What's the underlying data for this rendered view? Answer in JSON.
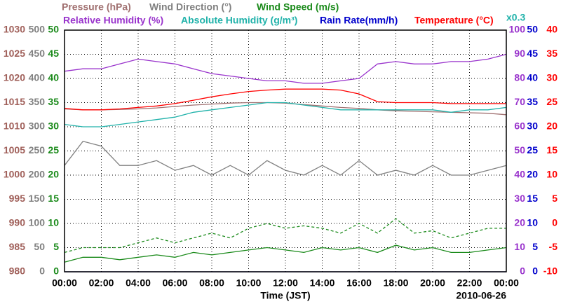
{
  "chart_data": {
    "type": "line",
    "x": [
      0,
      1,
      2,
      3,
      4,
      5,
      6,
      7,
      8,
      9,
      10,
      11,
      12,
      13,
      14,
      15,
      16,
      17,
      18,
      19,
      20,
      21,
      22,
      23,
      24
    ],
    "xlim": [
      0,
      24
    ],
    "xticks": [
      {
        "value": 0,
        "label": "00:00"
      },
      {
        "value": 2,
        "label": "02:00"
      },
      {
        "value": 4,
        "label": "04:00"
      },
      {
        "value": 6,
        "label": "06:00"
      },
      {
        "value": 8,
        "label": "08:00"
      },
      {
        "value": 10,
        "label": "10:00"
      },
      {
        "value": 12,
        "label": "12:00"
      },
      {
        "value": 14,
        "label": "14:00"
      },
      {
        "value": 16,
        "label": "16:00"
      },
      {
        "value": 18,
        "label": "18:00"
      },
      {
        "value": 20,
        "label": "20:00"
      },
      {
        "value": 22,
        "label": "22:00"
      },
      {
        "value": 24,
        "label": "00:00"
      }
    ],
    "x_label": "Time (JST)",
    "date_label": "2010-06-26",
    "scale_note": "x0.3",
    "grid": true,
    "y_axes": [
      {
        "side": "left",
        "color": "#a0605a",
        "ylim": [
          980,
          1030
        ],
        "yticks": [
          980,
          985,
          990,
          995,
          1000,
          1005,
          1010,
          1015,
          1020,
          1025,
          1030
        ]
      },
      {
        "side": "left",
        "color": "#808080",
        "ylim": [
          0,
          500
        ],
        "yticks": [
          0,
          50,
          100,
          150,
          200,
          250,
          300,
          350,
          400,
          450,
          500
        ]
      },
      {
        "side": "left",
        "color": "#1a8a1a",
        "ylim": [
          0,
          50
        ],
        "yticks": [
          0,
          5,
          10,
          15,
          20,
          25,
          30,
          35,
          40,
          45,
          50
        ]
      },
      {
        "side": "right",
        "color": "#9933cc",
        "ylim": [
          0,
          100
        ],
        "yticks": [
          0,
          10,
          20,
          30,
          40,
          50,
          60,
          70,
          80,
          90,
          100
        ]
      },
      {
        "side": "right",
        "color": "#0000cc",
        "ylim": [
          0,
          50
        ],
        "yticks": [
          0,
          5,
          10,
          15,
          20,
          25,
          30,
          35,
          40,
          45,
          50
        ]
      },
      {
        "side": "right",
        "color": "#ff0000",
        "ylim": [
          -10,
          40
        ],
        "yticks": [
          -10,
          -5,
          0,
          5,
          10,
          15,
          20,
          25,
          30,
          35,
          40
        ]
      }
    ],
    "series": [
      {
        "name": "Pressure (hPa)",
        "color": "#a07070",
        "axis": 0,
        "values": [
          1013.7,
          1013.5,
          1013.5,
          1013.6,
          1013.7,
          1013.9,
          1014.2,
          1014.5,
          1014.7,
          1014.9,
          1015.0,
          1015.0,
          1014.9,
          1014.6,
          1014.3,
          1014.0,
          1013.8,
          1013.5,
          1013.3,
          1013.2,
          1013.1,
          1013.0,
          1012.9,
          1012.8,
          1012.5
        ]
      },
      {
        "name": "Wind Direction (°)",
        "color": "#808080",
        "axis": 1,
        "values": [
          220,
          270,
          260,
          220,
          220,
          230,
          210,
          220,
          200,
          220,
          200,
          230,
          210,
          200,
          220,
          200,
          230,
          200,
          210,
          200,
          220,
          200,
          200,
          210,
          220
        ]
      },
      {
        "name": "Wind Speed (m/s)",
        "color": "#1a8a1a",
        "axis": 2,
        "values": [
          2,
          3,
          3,
          2.5,
          3,
          3.5,
          3,
          4,
          3.5,
          4,
          4.5,
          5,
          4.5,
          4,
          5,
          4.5,
          5,
          4,
          5.5,
          4.5,
          5,
          4,
          4,
          4.5,
          5
        ]
      },
      {
        "color": "#1a8a1a",
        "axis": 2,
        "dashed": true,
        "values": [
          4,
          5,
          5,
          5,
          6,
          7,
          6,
          7,
          8,
          7,
          9,
          10,
          9,
          9.5,
          9,
          8,
          10,
          8,
          11,
          8,
          8.5,
          7,
          8,
          9,
          9
        ]
      },
      {
        "name": "Relative Humidity (%)",
        "color": "#9933cc",
        "axis": 3,
        "values": [
          83,
          84,
          84,
          86,
          88,
          87,
          86,
          84,
          82,
          81,
          80,
          79,
          79,
          78,
          78,
          79,
          80,
          86,
          87,
          86,
          86,
          87,
          87,
          88,
          90
        ]
      },
      {
        "name": "Absolute Humidity (g/m³)",
        "color": "#20b2aa",
        "axis": 4,
        "values": [
          30.5,
          30,
          30,
          30.5,
          31,
          31.5,
          32,
          33,
          33.5,
          34,
          34.5,
          35,
          35,
          34.5,
          34,
          33.5,
          33.5,
          33.5,
          33.5,
          33.5,
          33.5,
          33,
          33.5,
          33.5,
          34
        ]
      },
      {
        "name": "Rain Rate(mm/h)",
        "color": "#0000cc",
        "axis": 4,
        "values": [
          0,
          0,
          0,
          0,
          0,
          0,
          0,
          0,
          0,
          0,
          0,
          0,
          0,
          0,
          0,
          0,
          0,
          0,
          0,
          0,
          0,
          0,
          0,
          0,
          0
        ]
      },
      {
        "name": "Temperature (°C)",
        "color": "#ff0000",
        "axis": 5,
        "values": [
          23.8,
          23.5,
          23.5,
          23.7,
          24,
          24.3,
          24.8,
          25.5,
          26.2,
          26.8,
          27.3,
          27.6,
          27.8,
          27.8,
          27.8,
          27.6,
          26.8,
          25.2,
          25,
          25,
          25,
          24.8,
          24.8,
          24.8,
          24.8
        ]
      }
    ]
  }
}
